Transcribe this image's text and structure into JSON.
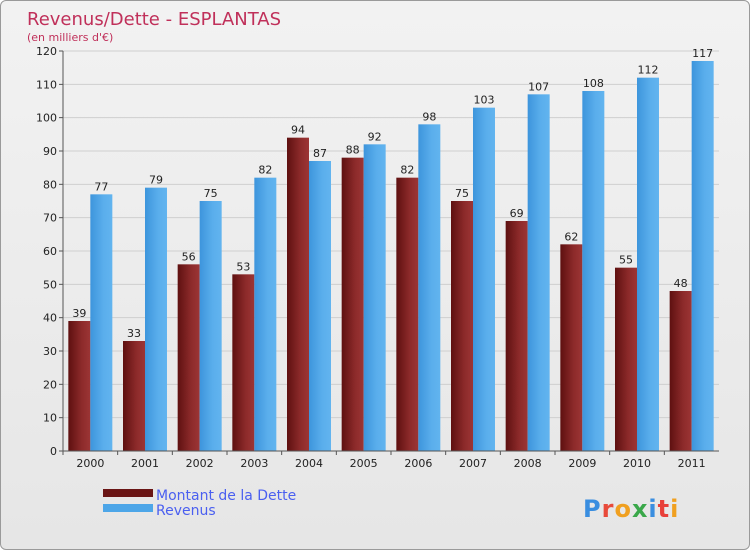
{
  "chart_data": {
    "type": "bar",
    "title": "Revenus/Dette - ESPLANTAS",
    "subtitle": "(en milliers d'€)",
    "categories": [
      "2000",
      "2001",
      "2002",
      "2003",
      "2004",
      "2005",
      "2006",
      "2007",
      "2008",
      "2009",
      "2010",
      "2011"
    ],
    "series": [
      {
        "name": "Montant de la Dette",
        "color": "#7a1f1f",
        "values": [
          39,
          33,
          56,
          53,
          94,
          88,
          82,
          75,
          69,
          62,
          55,
          48
        ]
      },
      {
        "name": "Revenus",
        "color": "#4da6e8",
        "values": [
          77,
          79,
          75,
          82,
          87,
          92,
          98,
          103,
          107,
          108,
          112,
          117
        ]
      }
    ],
    "ylim": [
      0,
      120
    ],
    "yticks": [
      0,
      10,
      20,
      30,
      40,
      50,
      60,
      70,
      80,
      90,
      100,
      110,
      120
    ],
    "grid": true,
    "legend_position": "bottom-left"
  },
  "logo": {
    "text": "Proxiti"
  }
}
